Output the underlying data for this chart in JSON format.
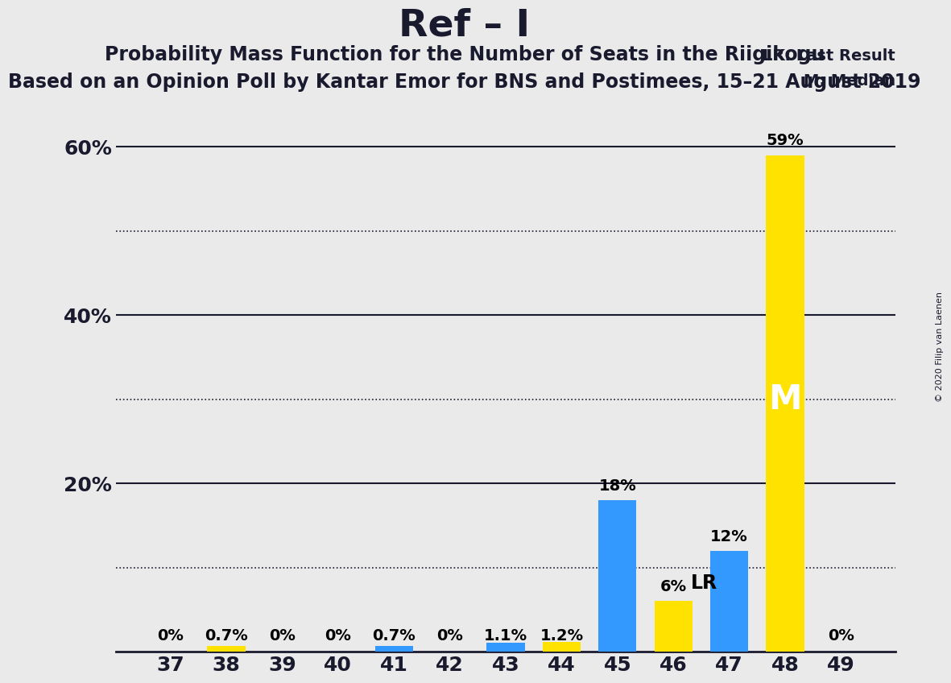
{
  "title": "Ref – I",
  "subtitle1": "Probability Mass Function for the Number of Seats in the Riigikogu",
  "subtitle2": "Based on an Opinion Poll by Kantar Emor for BNS and Postimees, 15–21 August 2019",
  "copyright": "© 2020 Filip van Laenen",
  "seats": [
    37,
    38,
    39,
    40,
    41,
    42,
    43,
    44,
    45,
    46,
    47,
    48,
    49
  ],
  "probabilities": [
    0.0,
    0.7,
    0.0,
    0.0,
    0.7,
    0.0,
    1.1,
    1.2,
    18.0,
    6.0,
    12.0,
    59.0,
    0.0
  ],
  "labels": [
    "0%",
    "0.7%",
    "0%",
    "0%",
    "0.7%",
    "0%",
    "1.1%",
    "1.2%",
    "18%",
    "6%",
    "12%",
    "59%",
    "0%"
  ],
  "colors": [
    "#3399FF",
    "#FFE200",
    "#3399FF",
    "#3399FF",
    "#3399FF",
    "#3399FF",
    "#3399FF",
    "#FFE200",
    "#3399FF",
    "#FFE200",
    "#3399FF",
    "#FFE200",
    "#3399FF"
  ],
  "median_seat": 48,
  "lr_seat": 46,
  "lr_label": "LR",
  "median_label": "M",
  "lr_legend": "LR: Last Result",
  "median_legend": "M: Median",
  "ylim": [
    0,
    65
  ],
  "solid_grid": [
    20,
    40,
    60
  ],
  "dotted_grid": [
    10,
    30,
    50
  ],
  "ytick_positions": [
    20,
    40,
    60
  ],
  "ytick_labels": [
    "20%",
    "40%",
    "60%"
  ],
  "background_color": "#EAEAEA",
  "bar_color_blue": "#3399FF",
  "bar_color_yellow": "#FFE200",
  "grid_color_solid": "#1a1a2e",
  "grid_color_dotted": "#1a1a2e",
  "title_fontsize": 34,
  "subtitle1_fontsize": 17,
  "subtitle2_fontsize": 17,
  "label_fontsize": 14,
  "tick_fontsize": 18
}
